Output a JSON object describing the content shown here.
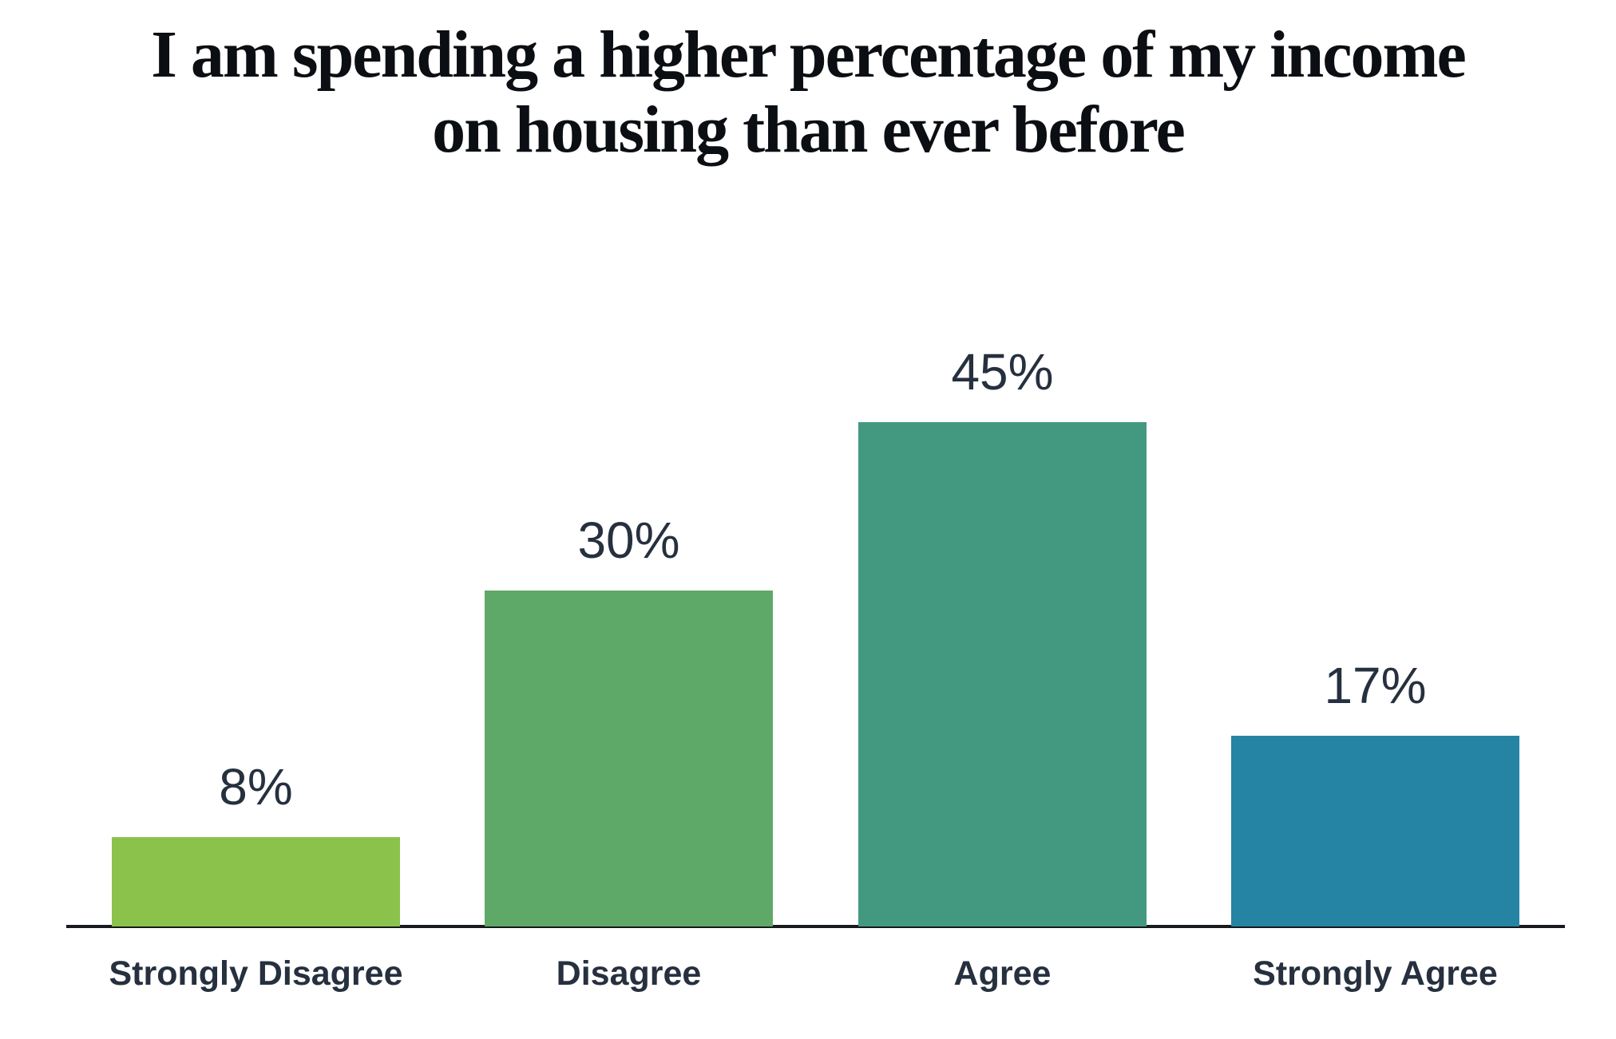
{
  "chart_data": {
    "type": "bar",
    "title": "I am spending a higher percentage of my income on housing than ever before",
    "title_lines": [
      "I am spending a higher percentage of my income",
      "on housing than ever before"
    ],
    "categories": [
      "Strongly Disagree",
      "Disagree",
      "Agree",
      "Strongly Agree"
    ],
    "values": [
      8,
      30,
      45,
      17
    ],
    "value_labels": [
      "8%",
      "30%",
      "45%",
      "17%"
    ],
    "xlabel": "",
    "ylabel": "",
    "ylim": [
      0,
      45
    ],
    "grid": false,
    "legend": false,
    "bar_colors": [
      "#8BC24C",
      "#5EA967",
      "#43997F",
      "#2584A4"
    ],
    "text_color": "#26303F",
    "title_color": "#0B0E12",
    "axis_color": "#16191D",
    "background": "#FFFFFF"
  }
}
